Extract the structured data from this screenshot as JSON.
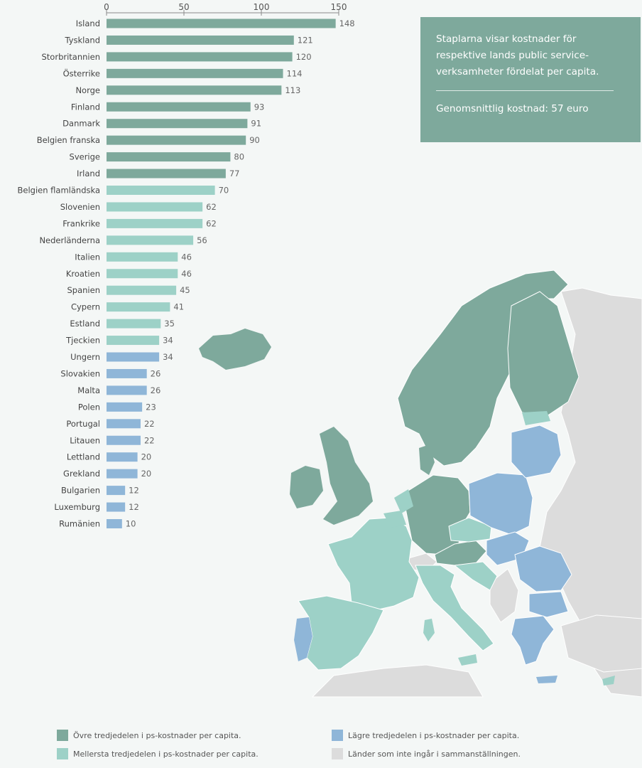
{
  "info": {
    "description": "Staplarna visar kostnader för respektive lands public service-verksamheter fördelat per capita.",
    "average": "Genomsnittlig kostnad: 57 euro"
  },
  "colors": {
    "upper": "#7ea99c",
    "middle": "#9dd1c7",
    "lower": "#8fb6d8",
    "excluded": "#dcdcdc",
    "text": "#444444"
  },
  "legend": [
    {
      "label": "Övre tredjedelen i ps-kostnader per capita.",
      "color": "#7ea99c"
    },
    {
      "label": "Lägre tredjedelen i ps-kostnader per capita.",
      "color": "#8fb6d8"
    },
    {
      "label": "Mellersta tredjedelen i ps-kostnader per capita.",
      "color": "#9dd1c7"
    },
    {
      "label": "Länder som inte ingår i sammanställningen.",
      "color": "#dcdcdc"
    }
  ],
  "chart_data": {
    "type": "bar",
    "orientation": "horizontal",
    "title": "",
    "xlabel": "",
    "ylabel": "",
    "xlim": [
      0,
      150
    ],
    "xticks": [
      0,
      50,
      100,
      150
    ],
    "grid": false,
    "categories": [
      "Island",
      "Tyskland",
      "Storbritannien",
      "Österrike",
      "Norge",
      "Finland",
      "Danmark",
      "Belgien franska",
      "Sverige",
      "Irland",
      "Belgien flamländska",
      "Slovenien",
      "Frankrike",
      "Nederländerna",
      "Italien",
      "Kroatien",
      "Spanien",
      "Cypern",
      "Estland",
      "Tjeckien",
      "Ungern",
      "Slovakien",
      "Malta",
      "Polen",
      "Portugal",
      "Litauen",
      "Lettland",
      "Grekland",
      "Bulgarien",
      "Luxemburg",
      "Rumänien"
    ],
    "values": [
      148,
      121,
      120,
      114,
      113,
      93,
      91,
      90,
      80,
      77,
      70,
      62,
      62,
      56,
      46,
      46,
      45,
      41,
      35,
      34,
      34,
      26,
      26,
      23,
      22,
      22,
      20,
      20,
      12,
      12,
      10
    ],
    "tiers": [
      "upper",
      "upper",
      "upper",
      "upper",
      "upper",
      "upper",
      "upper",
      "upper",
      "upper",
      "upper",
      "middle",
      "middle",
      "middle",
      "middle",
      "middle",
      "middle",
      "middle",
      "middle",
      "middle",
      "middle",
      "lower",
      "lower",
      "lower",
      "lower",
      "lower",
      "lower",
      "lower",
      "lower",
      "lower",
      "lower",
      "lower"
    ]
  }
}
